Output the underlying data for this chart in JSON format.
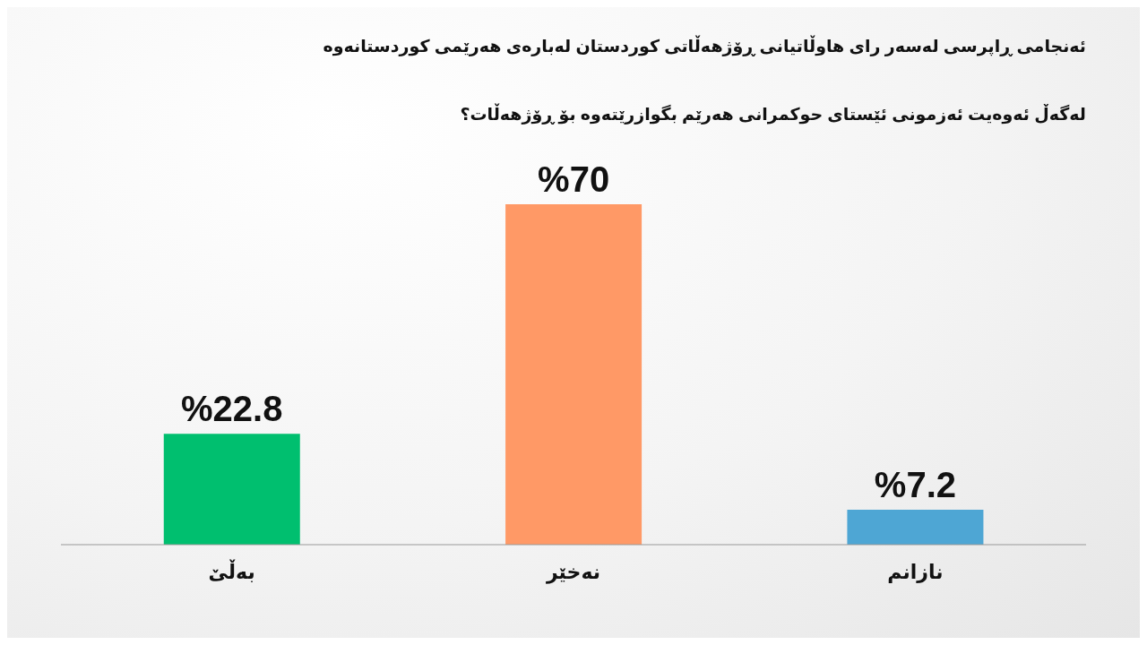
{
  "chart_data": {
    "type": "bar",
    "title": "ئەنجامی ڕاپرسی لەسەر رای هاوڵاتیانی ڕۆژهەڵاتی کوردستان لەبارەی هەرێمی کوردستانەوە",
    "subtitle": "لەگەڵ ئەوەیت ئەزمونی ئێستای حوکمرانی هەرێم بگوازرێتەوە بۆ ڕۆژهەڵات؟",
    "categories": [
      "بەڵێ",
      "نەخێر",
      "نازانم"
    ],
    "values": [
      22.8,
      70,
      7.2
    ],
    "colors": [
      "#00bf6f",
      "#ff9966",
      "#4ea6d4"
    ],
    "value_labels": [
      "%22.8",
      "%70",
      "%7.2"
    ],
    "grid": false,
    "legend": false
  }
}
